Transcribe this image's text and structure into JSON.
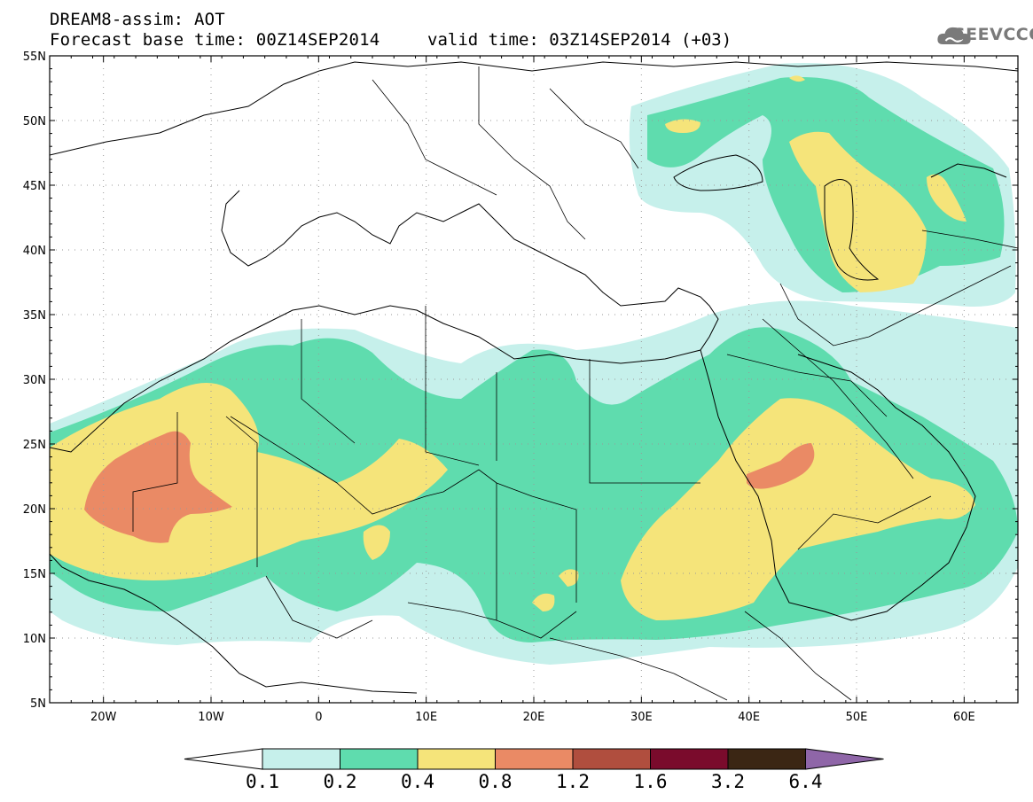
{
  "header": {
    "title_line1": "DREAM8-assim: AOT",
    "title_line2": "Forecast base time: 00Z14SEP2014",
    "valid": "valid time: 03Z14SEP2014 (+03)",
    "logo_text": "SEEVCCC"
  },
  "axes": {
    "lat_labels": [
      "55N",
      "50N",
      "45N",
      "40N",
      "35N",
      "30N",
      "25N",
      "20N",
      "15N",
      "10N",
      "5N"
    ],
    "lon_labels": [
      "20W",
      "10W",
      "0",
      "10E",
      "20E",
      "30E",
      "40E",
      "50E",
      "60E"
    ],
    "lon_range": [
      -25,
      65
    ],
    "lat_range": [
      5,
      55
    ],
    "grid": "dotted"
  },
  "colorbar": {
    "labels": [
      "0.1",
      "0.2",
      "0.4",
      "0.8",
      "1.2",
      "1.6",
      "3.2",
      "6.4"
    ],
    "colors": [
      "#c6f0eb",
      "#5fdcae",
      "#f5e47a",
      "#ea8a65",
      "#b04e3e",
      "#7a0b2c",
      "#3b2614",
      "#8f66a8"
    ]
  },
  "field": {
    "name": "AOT",
    "colors": {
      "c01": "#c6f0eb",
      "c02": "#5fdcae",
      "c04": "#f5e47a",
      "c08": "#ea8a65"
    }
  }
}
